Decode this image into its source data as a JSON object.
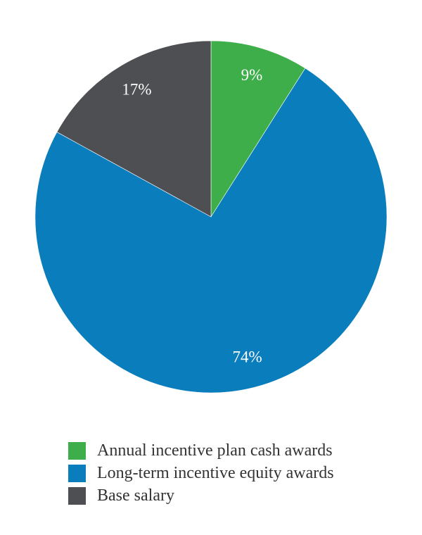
{
  "chart_data": {
    "type": "pie",
    "title": "",
    "slices": [
      {
        "label": "Annual incentive plan cash awards",
        "value": 9,
        "display": "9%",
        "color": "#3DAE4A"
      },
      {
        "label": "Long-term incentive equity awards",
        "value": 74,
        "display": "74%",
        "color": "#0A7DBD"
      },
      {
        "label": "Base salary",
        "value": 17,
        "display": "17%",
        "color": "#4D4F52"
      }
    ],
    "legend_position": "bottom"
  }
}
